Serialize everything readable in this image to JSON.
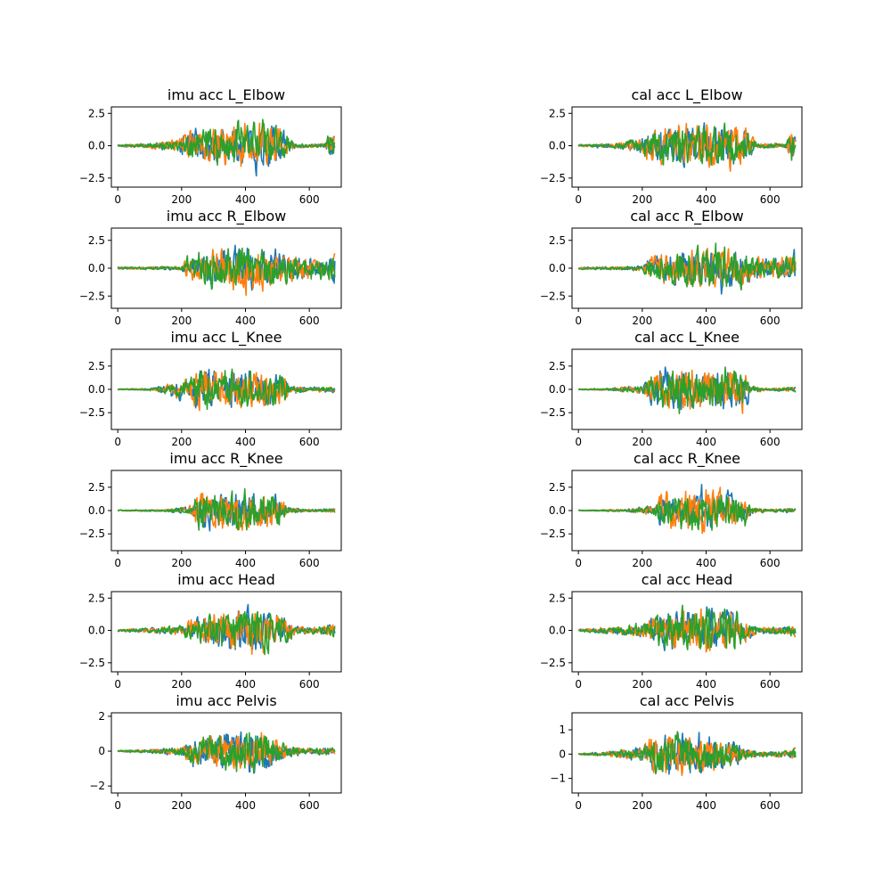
{
  "colors": {
    "x": "#1f77b4",
    "y": "#ff7f0e",
    "z": "#2ca02c"
  },
  "chart_data": [
    {
      "type": "line",
      "title": "imu acc L_Elbow",
      "xlim": [
        -20,
        700
      ],
      "ylim": [
        -3.2,
        3.0
      ],
      "xticks": [
        0,
        200,
        400,
        600
      ],
      "yticks": [
        -2.5,
        0.0,
        2.5
      ],
      "activity": [
        [
          0,
          0.05
        ],
        [
          100,
          0.1
        ],
        [
          190,
          0.3
        ],
        [
          220,
          0.7
        ],
        [
          300,
          0.8
        ],
        [
          400,
          0.9
        ],
        [
          460,
          1.0
        ],
        [
          520,
          0.6
        ],
        [
          560,
          0.08
        ],
        [
          650,
          0.08
        ],
        [
          665,
          0.6
        ],
        [
          680,
          0.5
        ]
      ]
    },
    {
      "type": "line",
      "title": "cal acc L_Elbow",
      "xlim": [
        -20,
        700
      ],
      "ylim": [
        -3.2,
        3.0
      ],
      "xticks": [
        0,
        200,
        400,
        600
      ],
      "yticks": [
        -2.5,
        0.0,
        2.5
      ],
      "activity": [
        [
          0,
          0.05
        ],
        [
          100,
          0.1
        ],
        [
          190,
          0.3
        ],
        [
          220,
          0.6
        ],
        [
          280,
          0.95
        ],
        [
          400,
          0.9
        ],
        [
          440,
          1.0
        ],
        [
          520,
          0.8
        ],
        [
          560,
          0.1
        ],
        [
          650,
          0.1
        ],
        [
          665,
          0.7
        ],
        [
          680,
          0.6
        ]
      ]
    },
    {
      "type": "line",
      "title": "imu acc R_Elbow",
      "xlim": [
        -20,
        700
      ],
      "ylim": [
        -3.6,
        3.6
      ],
      "xticks": [
        0,
        200,
        400,
        600
      ],
      "yticks": [
        -2.5,
        0.0,
        2.5
      ],
      "activity": [
        [
          0,
          0.05
        ],
        [
          200,
          0.08
        ],
        [
          215,
          0.5
        ],
        [
          300,
          0.9
        ],
        [
          380,
          1.0
        ],
        [
          460,
          0.8
        ],
        [
          520,
          0.7
        ],
        [
          600,
          0.5
        ],
        [
          660,
          0.4
        ],
        [
          680,
          0.9
        ]
      ]
    },
    {
      "type": "line",
      "title": "cal acc R_Elbow",
      "xlim": [
        -20,
        700
      ],
      "ylim": [
        -3.6,
        3.6
      ],
      "xticks": [
        0,
        200,
        400,
        600
      ],
      "yticks": [
        -2.5,
        0.0,
        2.5
      ],
      "activity": [
        [
          0,
          0.05
        ],
        [
          200,
          0.1
        ],
        [
          215,
          0.4
        ],
        [
          260,
          0.8
        ],
        [
          380,
          0.9
        ],
        [
          450,
          1.0
        ],
        [
          520,
          0.7
        ],
        [
          600,
          0.45
        ],
        [
          660,
          0.5
        ],
        [
          680,
          0.9
        ]
      ]
    },
    {
      "type": "line",
      "title": "imu acc L_Knee",
      "xlim": [
        -20,
        700
      ],
      "ylim": [
        -4.3,
        4.3
      ],
      "xticks": [
        0,
        200,
        400,
        600
      ],
      "yticks": [
        -2.5,
        0.0,
        2.5
      ],
      "activity": [
        [
          0,
          0.02
        ],
        [
          100,
          0.05
        ],
        [
          150,
          0.2
        ],
        [
          220,
          0.5
        ],
        [
          250,
          1.0
        ],
        [
          340,
          0.8
        ],
        [
          400,
          0.9
        ],
        [
          450,
          0.8
        ],
        [
          520,
          0.7
        ],
        [
          540,
          0.2
        ],
        [
          600,
          0.08
        ],
        [
          680,
          0.15
        ]
      ]
    },
    {
      "type": "line",
      "title": "cal acc L_Knee",
      "xlim": [
        -20,
        700
      ],
      "ylim": [
        -4.3,
        4.3
      ],
      "xticks": [
        0,
        200,
        400,
        600
      ],
      "yticks": [
        -2.5,
        0.0,
        2.5
      ],
      "activity": [
        [
          0,
          0.02
        ],
        [
          100,
          0.05
        ],
        [
          200,
          0.2
        ],
        [
          250,
          0.9
        ],
        [
          330,
          1.0
        ],
        [
          400,
          0.8
        ],
        [
          460,
          1.0
        ],
        [
          520,
          0.9
        ],
        [
          540,
          0.15
        ],
        [
          600,
          0.05
        ],
        [
          680,
          0.12
        ]
      ]
    },
    {
      "type": "line",
      "title": "imu acc R_Knee",
      "xlim": [
        -20,
        700
      ],
      "ylim": [
        -4.3,
        4.3
      ],
      "xticks": [
        0,
        200,
        400,
        600
      ],
      "yticks": [
        -2.5,
        0.0,
        2.5
      ],
      "activity": [
        [
          0,
          0.02
        ],
        [
          150,
          0.05
        ],
        [
          230,
          0.2
        ],
        [
          260,
          1.0
        ],
        [
          310,
          0.8
        ],
        [
          380,
          1.0
        ],
        [
          430,
          0.7
        ],
        [
          500,
          0.7
        ],
        [
          530,
          0.15
        ],
        [
          600,
          0.05
        ],
        [
          680,
          0.1
        ]
      ]
    },
    {
      "type": "line",
      "title": "cal acc R_Knee",
      "xlim": [
        -20,
        700
      ],
      "ylim": [
        -4.3,
        4.3
      ],
      "xticks": [
        0,
        200,
        400,
        600
      ],
      "yticks": [
        -2.5,
        0.0,
        2.5
      ],
      "activity": [
        [
          0,
          0.02
        ],
        [
          150,
          0.05
        ],
        [
          230,
          0.2
        ],
        [
          270,
          0.9
        ],
        [
          330,
          0.8
        ],
        [
          390,
          1.0
        ],
        [
          440,
          0.8
        ],
        [
          520,
          0.7
        ],
        [
          540,
          0.15
        ],
        [
          600,
          0.05
        ],
        [
          680,
          0.12
        ]
      ]
    },
    {
      "type": "line",
      "title": "imu acc Head",
      "xlim": [
        -20,
        700
      ],
      "ylim": [
        -3.2,
        3.0
      ],
      "xticks": [
        0,
        200,
        400,
        600
      ],
      "yticks": [
        -2.5,
        0.0,
        2.5
      ],
      "activity": [
        [
          0,
          0.05
        ],
        [
          100,
          0.1
        ],
        [
          200,
          0.2
        ],
        [
          260,
          0.6
        ],
        [
          300,
          0.7
        ],
        [
          380,
          0.9
        ],
        [
          440,
          1.0
        ],
        [
          520,
          0.6
        ],
        [
          560,
          0.15
        ],
        [
          640,
          0.15
        ],
        [
          680,
          0.3
        ]
      ]
    },
    {
      "type": "line",
      "title": "cal acc Head",
      "xlim": [
        -20,
        700
      ],
      "ylim": [
        -3.2,
        3.0
      ],
      "xticks": [
        0,
        200,
        400,
        600
      ],
      "yticks": [
        -2.5,
        0.0,
        2.5
      ],
      "activity": [
        [
          0,
          0.05
        ],
        [
          100,
          0.15
        ],
        [
          200,
          0.3
        ],
        [
          280,
          0.9
        ],
        [
          360,
          0.9
        ],
        [
          440,
          1.0
        ],
        [
          500,
          0.8
        ],
        [
          560,
          0.15
        ],
        [
          640,
          0.15
        ],
        [
          680,
          0.25
        ]
      ]
    },
    {
      "type": "line",
      "title": "imu acc Pelvis",
      "xlim": [
        -20,
        700
      ],
      "ylim": [
        -2.4,
        2.2
      ],
      "xticks": [
        0,
        200,
        400,
        600
      ],
      "yticks": [
        -2,
        0,
        2
      ],
      "activity": [
        [
          0,
          0.03
        ],
        [
          100,
          0.08
        ],
        [
          200,
          0.2
        ],
        [
          230,
          0.6
        ],
        [
          300,
          0.7
        ],
        [
          380,
          0.8
        ],
        [
          430,
          1.0
        ],
        [
          480,
          0.8
        ],
        [
          520,
          0.3
        ],
        [
          600,
          0.12
        ],
        [
          680,
          0.15
        ]
      ]
    },
    {
      "type": "line",
      "title": "cal acc Pelvis",
      "xlim": [
        -20,
        700
      ],
      "ylim": [
        -1.6,
        1.7
      ],
      "xticks": [
        0,
        200,
        400,
        600
      ],
      "yticks": [
        -1,
        0,
        1
      ],
      "activity": [
        [
          0,
          0.03
        ],
        [
          100,
          0.1
        ],
        [
          200,
          0.3
        ],
        [
          230,
          0.8
        ],
        [
          300,
          0.9
        ],
        [
          400,
          0.8
        ],
        [
          470,
          0.6
        ],
        [
          520,
          0.3
        ],
        [
          560,
          0.1
        ],
        [
          660,
          0.15
        ],
        [
          680,
          0.3
        ]
      ]
    }
  ]
}
